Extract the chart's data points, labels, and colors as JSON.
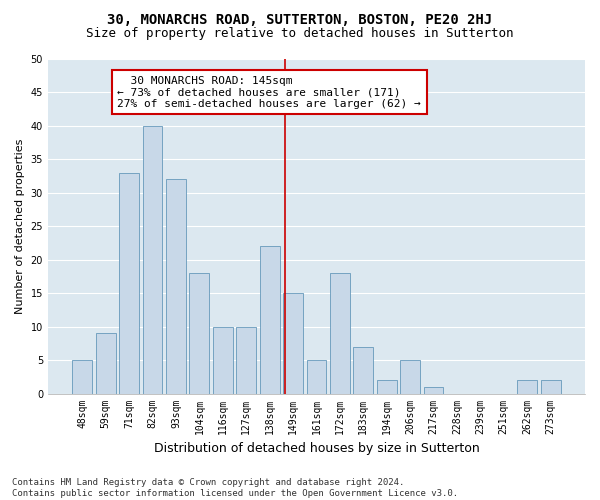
{
  "title": "30, MONARCHS ROAD, SUTTERTON, BOSTON, PE20 2HJ",
  "subtitle": "Size of property relative to detached houses in Sutterton",
  "xlabel": "Distribution of detached houses by size in Sutterton",
  "ylabel": "Number of detached properties",
  "bar_labels": [
    "48sqm",
    "59sqm",
    "71sqm",
    "82sqm",
    "93sqm",
    "104sqm",
    "116sqm",
    "127sqm",
    "138sqm",
    "149sqm",
    "161sqm",
    "172sqm",
    "183sqm",
    "194sqm",
    "206sqm",
    "217sqm",
    "228sqm",
    "239sqm",
    "251sqm",
    "262sqm",
    "273sqm"
  ],
  "bar_values": [
    5,
    9,
    33,
    40,
    32,
    18,
    10,
    10,
    22,
    15,
    5,
    18,
    7,
    2,
    5,
    1,
    0,
    0,
    0,
    2,
    2
  ],
  "bar_color": "#c8d8e8",
  "bar_edge_color": "#6699bb",
  "vline_x_index": 8.636,
  "vline_color": "#cc0000",
  "annotation_text": "  30 MONARCHS ROAD: 145sqm  \n← 73% of detached houses are smaller (171)\n27% of semi-detached houses are larger (62) →",
  "annotation_box_color": "#cc0000",
  "ylim": [
    0,
    50
  ],
  "yticks": [
    0,
    5,
    10,
    15,
    20,
    25,
    30,
    35,
    40,
    45,
    50
  ],
  "background_color": "#dce8f0",
  "grid_color": "#ffffff",
  "footnote": "Contains HM Land Registry data © Crown copyright and database right 2024.\nContains public sector information licensed under the Open Government Licence v3.0.",
  "title_fontsize": 10,
  "subtitle_fontsize": 9,
  "xlabel_fontsize": 9,
  "ylabel_fontsize": 8,
  "tick_fontsize": 7,
  "annot_fontsize": 8,
  "footnote_fontsize": 6.5
}
